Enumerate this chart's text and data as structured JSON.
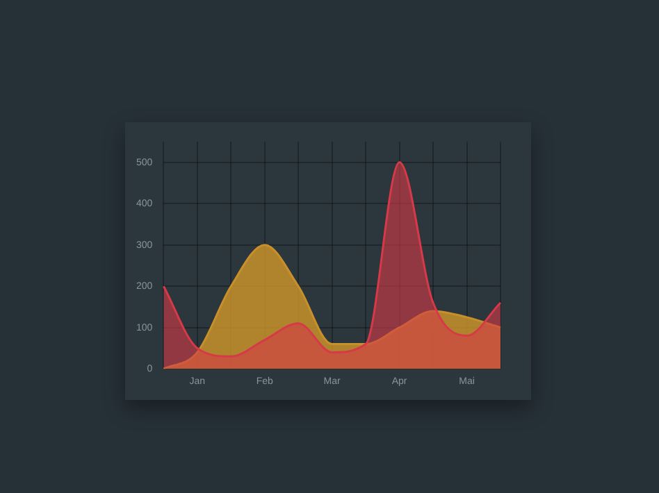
{
  "chart_data": {
    "type": "area",
    "categories": [
      null,
      "Jan",
      null,
      "Feb",
      null,
      "Mar",
      null,
      "Apr",
      null,
      "Mai",
      null
    ],
    "series": [
      {
        "color": "#c8902a",
        "values": [
          0,
          40,
          200,
          300,
          200,
          60,
          60,
          100,
          140,
          125,
          100
        ]
      },
      {
        "color": "#d63a48",
        "values": [
          200,
          50,
          30,
          70,
          110,
          40,
          60,
          500,
          160,
          80,
          160
        ]
      }
    ],
    "ylim": [
      0,
      550
    ],
    "yticks": [
      0,
      100,
      200,
      300,
      400,
      500
    ],
    "grid": true,
    "legend": false,
    "marker": "none"
  }
}
